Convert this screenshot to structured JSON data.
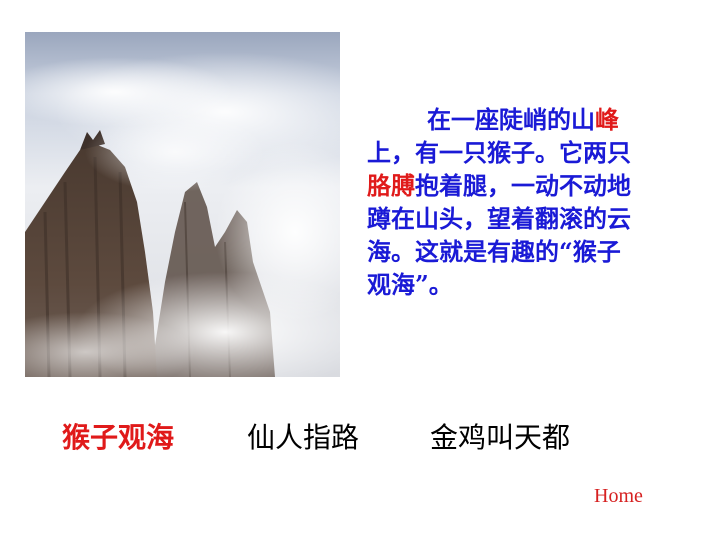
{
  "photo": {
    "icon": "misty-mountain-peaks-photo"
  },
  "passage": {
    "line1_pre": "在一座陡峭的山",
    "line1_red": "峰",
    "line2": "上，有一只猴子。它两只",
    "line3_red": "胳膊",
    "line3_post": "抱着腿，一动不动地",
    "line4": "蹲在山头，望着翻滚的云",
    "line5": "海。这就是有趣的“猴子",
    "line6": "观海”。"
  },
  "nav": {
    "items": [
      "猴子观海",
      "仙人指路",
      "金鸡叫天都"
    ]
  },
  "home": {
    "label": "Home"
  },
  "colors": {
    "accent_red": "#e01a1a",
    "text_blue": "#1a1ad6"
  }
}
